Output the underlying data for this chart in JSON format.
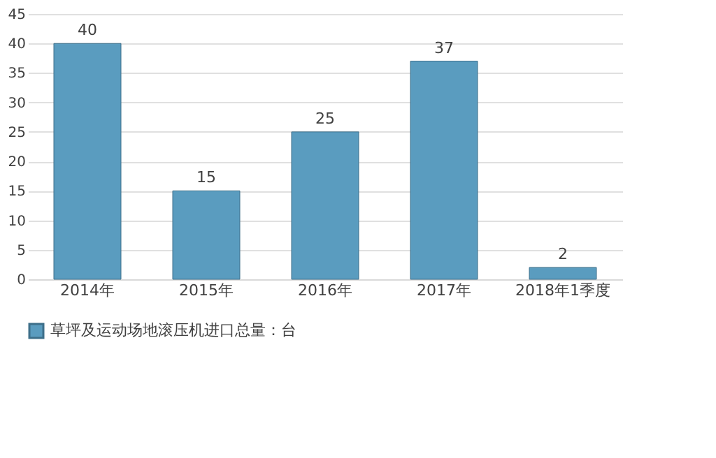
{
  "chart_data": {
    "type": "bar",
    "categories": [
      "2014年",
      "2015年",
      "2016年",
      "2017年",
      "2018年1季度"
    ],
    "series": [
      {
        "name": "草坪及运动场地滚压机进口总量：台",
        "color": "#5a9cbf",
        "values": [
          40,
          15,
          25,
          37,
          2
        ]
      }
    ],
    "ylim": [
      0,
      45
    ],
    "yticks": [
      0,
      5,
      10,
      15,
      20,
      25,
      30,
      35,
      40,
      45
    ],
    "grid": "y",
    "legend": "bottom",
    "data_labels": true
  }
}
